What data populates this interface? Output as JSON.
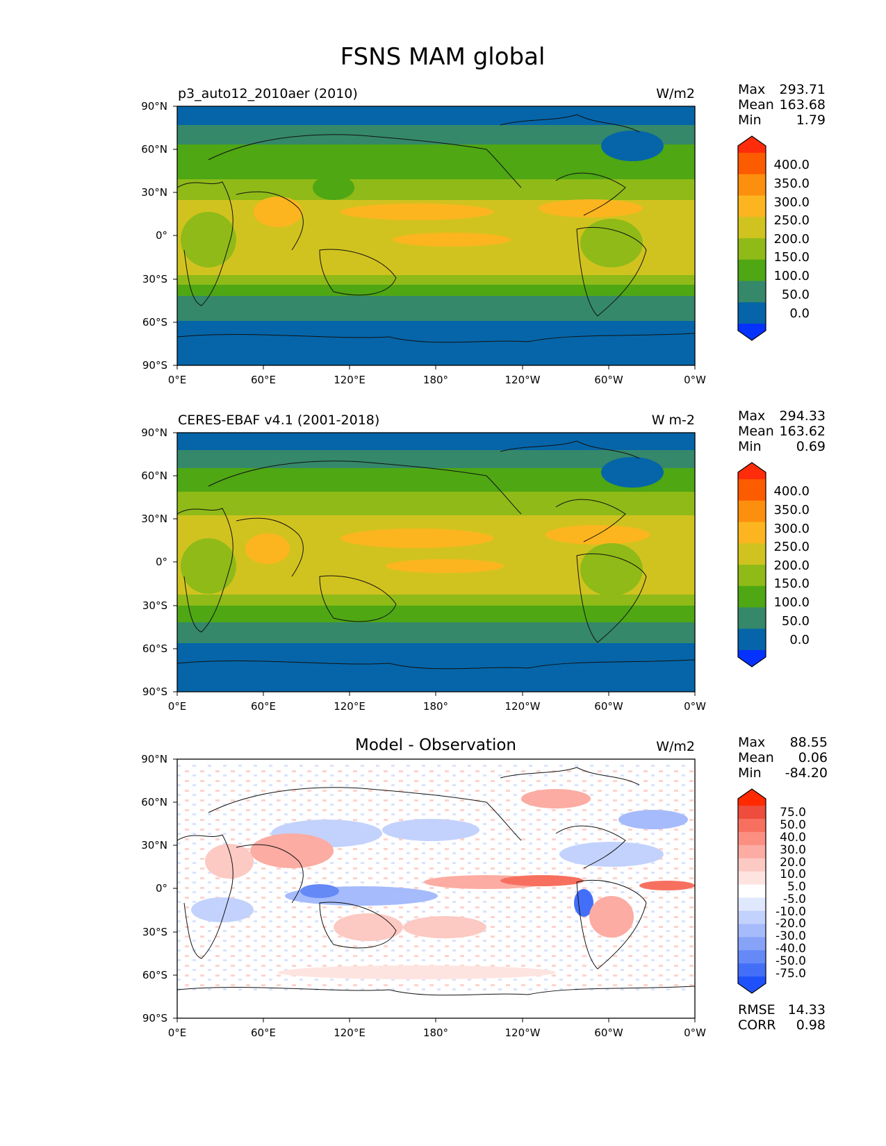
{
  "title": "FSNS MAM global",
  "lon_ticks": [
    "0°E",
    "60°E",
    "120°E",
    "180°",
    "120°W",
    "60°W",
    "0°W"
  ],
  "lat_ticks": [
    "90°N",
    "60°N",
    "30°N",
    "0°",
    "30°S",
    "60°S",
    "90°S"
  ],
  "panels": [
    {
      "id": "model",
      "left_title": "p3_auto12_2010aer (2010)",
      "center_title": "",
      "units": "W/m2",
      "stats": [
        {
          "label": "Max",
          "value": "293.71"
        },
        {
          "label": "Mean",
          "value": "163.68"
        },
        {
          "label": "Min",
          "value": "1.79"
        }
      ],
      "colorbar": {
        "labels": [
          "400.0",
          "350.0",
          "300.0",
          "250.0",
          "200.0",
          "150.0",
          "100.0",
          "50.0",
          "0.0"
        ],
        "colors": [
          "#fe2c0a",
          "#fd5b00",
          "#fd8f0e",
          "#fcb51f",
          "#d1c31f",
          "#8fba18",
          "#4ea713",
          "#35886a",
          "#0565a8",
          "#0532fe"
        ]
      },
      "extra_stats": []
    },
    {
      "id": "obs",
      "left_title": "CERES-EBAF v4.1 (2001-2018)",
      "center_title": "",
      "units": "W m-2",
      "stats": [
        {
          "label": "Max",
          "value": "294.33"
        },
        {
          "label": "Mean",
          "value": "163.62"
        },
        {
          "label": "Min",
          "value": "0.69"
        }
      ],
      "colorbar": {
        "labels": [
          "400.0",
          "350.0",
          "300.0",
          "250.0",
          "200.0",
          "150.0",
          "100.0",
          "50.0",
          "0.0"
        ],
        "colors": [
          "#fe2c0a",
          "#fd5b00",
          "#fd8f0e",
          "#fcb51f",
          "#d1c31f",
          "#8fba18",
          "#4ea713",
          "#35886a",
          "#0565a8",
          "#0532fe"
        ]
      },
      "extra_stats": []
    },
    {
      "id": "diff",
      "left_title": "",
      "center_title": "Model - Observation",
      "units": "W/m2",
      "stats": [
        {
          "label": "Max",
          "value": "88.55"
        },
        {
          "label": "Mean",
          "value": "0.06"
        },
        {
          "label": "Min",
          "value": "-84.20"
        }
      ],
      "colorbar": {
        "labels": [
          "75.0",
          "50.0",
          "40.0",
          "30.0",
          "20.0",
          "10.0",
          "5.0",
          "-5.0",
          "-10.0",
          "-20.0",
          "-30.0",
          "-40.0",
          "-50.0",
          "-75.0"
        ],
        "colors": [
          "#ff2a00",
          "#ee4c3c",
          "#f7705f",
          "#fb8f82",
          "#fcaca2",
          "#fdc9c3",
          "#fee4e0",
          "#ffffff",
          "#e0e8fd",
          "#c3d2fc",
          "#a5bbfb",
          "#86a3f8",
          "#6589f7",
          "#436ff8",
          "#1f51fb"
        ]
      },
      "extra_stats": [
        {
          "label": "RMSE",
          "value": "14.33"
        },
        {
          "label": "CORR",
          "value": "0.98"
        }
      ]
    }
  ]
}
